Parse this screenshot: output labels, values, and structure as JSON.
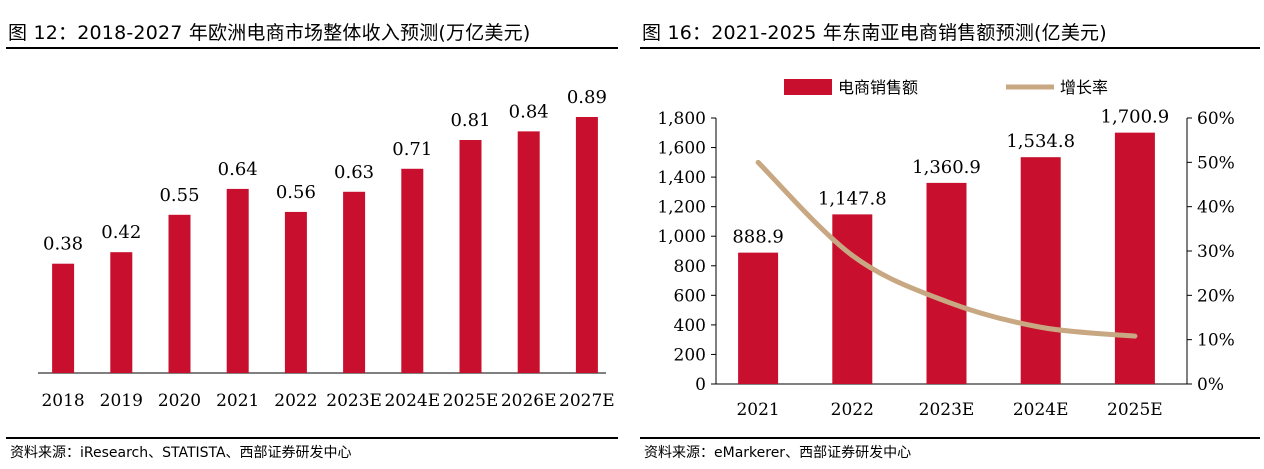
{
  "panels": {
    "left": {
      "title": "图 12：2018-2027 年欧洲电商市场整体收入预测(万亿美元)",
      "source": "资料来源：iResearch、STATISTA、西部证券研发中心"
    },
    "right": {
      "title": "图 16：2021-2025 年东南亚电商销售额预测(亿美元)",
      "source": "资料来源：eMarkerer、西部证券研发中心"
    }
  },
  "colors": {
    "bar": "#c8102e",
    "line": "#c8a882",
    "axis": "#000000"
  },
  "chart_data": [
    {
      "type": "bar",
      "categories": [
        "2018",
        "2019",
        "2020",
        "2021",
        "2022",
        "2023E",
        "2024E",
        "2025E",
        "2026E",
        "2027E"
      ],
      "values": [
        0.38,
        0.42,
        0.55,
        0.64,
        0.56,
        0.63,
        0.71,
        0.81,
        0.84,
        0.89
      ],
      "value_labels": [
        "0.38",
        "0.42",
        "0.55",
        "0.64",
        "0.56",
        "0.63",
        "0.71",
        "0.81",
        "0.84",
        "0.89"
      ],
      "ylim": [
        0,
        1.0
      ],
      "grid": false,
      "legend": null
    },
    {
      "type": "bar",
      "categories": [
        "2021",
        "2022",
        "2023E",
        "2024E",
        "2025E"
      ],
      "series": [
        {
          "name": "电商销售额",
          "type": "bar",
          "axis": "left",
          "values": [
            888.9,
            1147.8,
            1360.9,
            1534.8,
            1700.9
          ],
          "value_labels": [
            "888.9",
            "1,147.8",
            "1,360.9",
            "1,534.8",
            "1,700.9"
          ]
        },
        {
          "name": "增长率",
          "type": "line",
          "axis": "right",
          "values": [
            50,
            29,
            18.6,
            12.8,
            10.8
          ]
        }
      ],
      "y_left": {
        "range": [
          0,
          1800
        ],
        "ticks": [
          "0",
          "200",
          "400",
          "600",
          "800",
          "1,000",
          "1,200",
          "1,400",
          "1,600",
          "1,800"
        ]
      },
      "y_right": {
        "range": [
          0,
          60
        ],
        "ticks": [
          "0%",
          "10%",
          "20%",
          "30%",
          "40%",
          "50%",
          "60%"
        ]
      },
      "legend_position": "top-center",
      "grid": false
    }
  ]
}
